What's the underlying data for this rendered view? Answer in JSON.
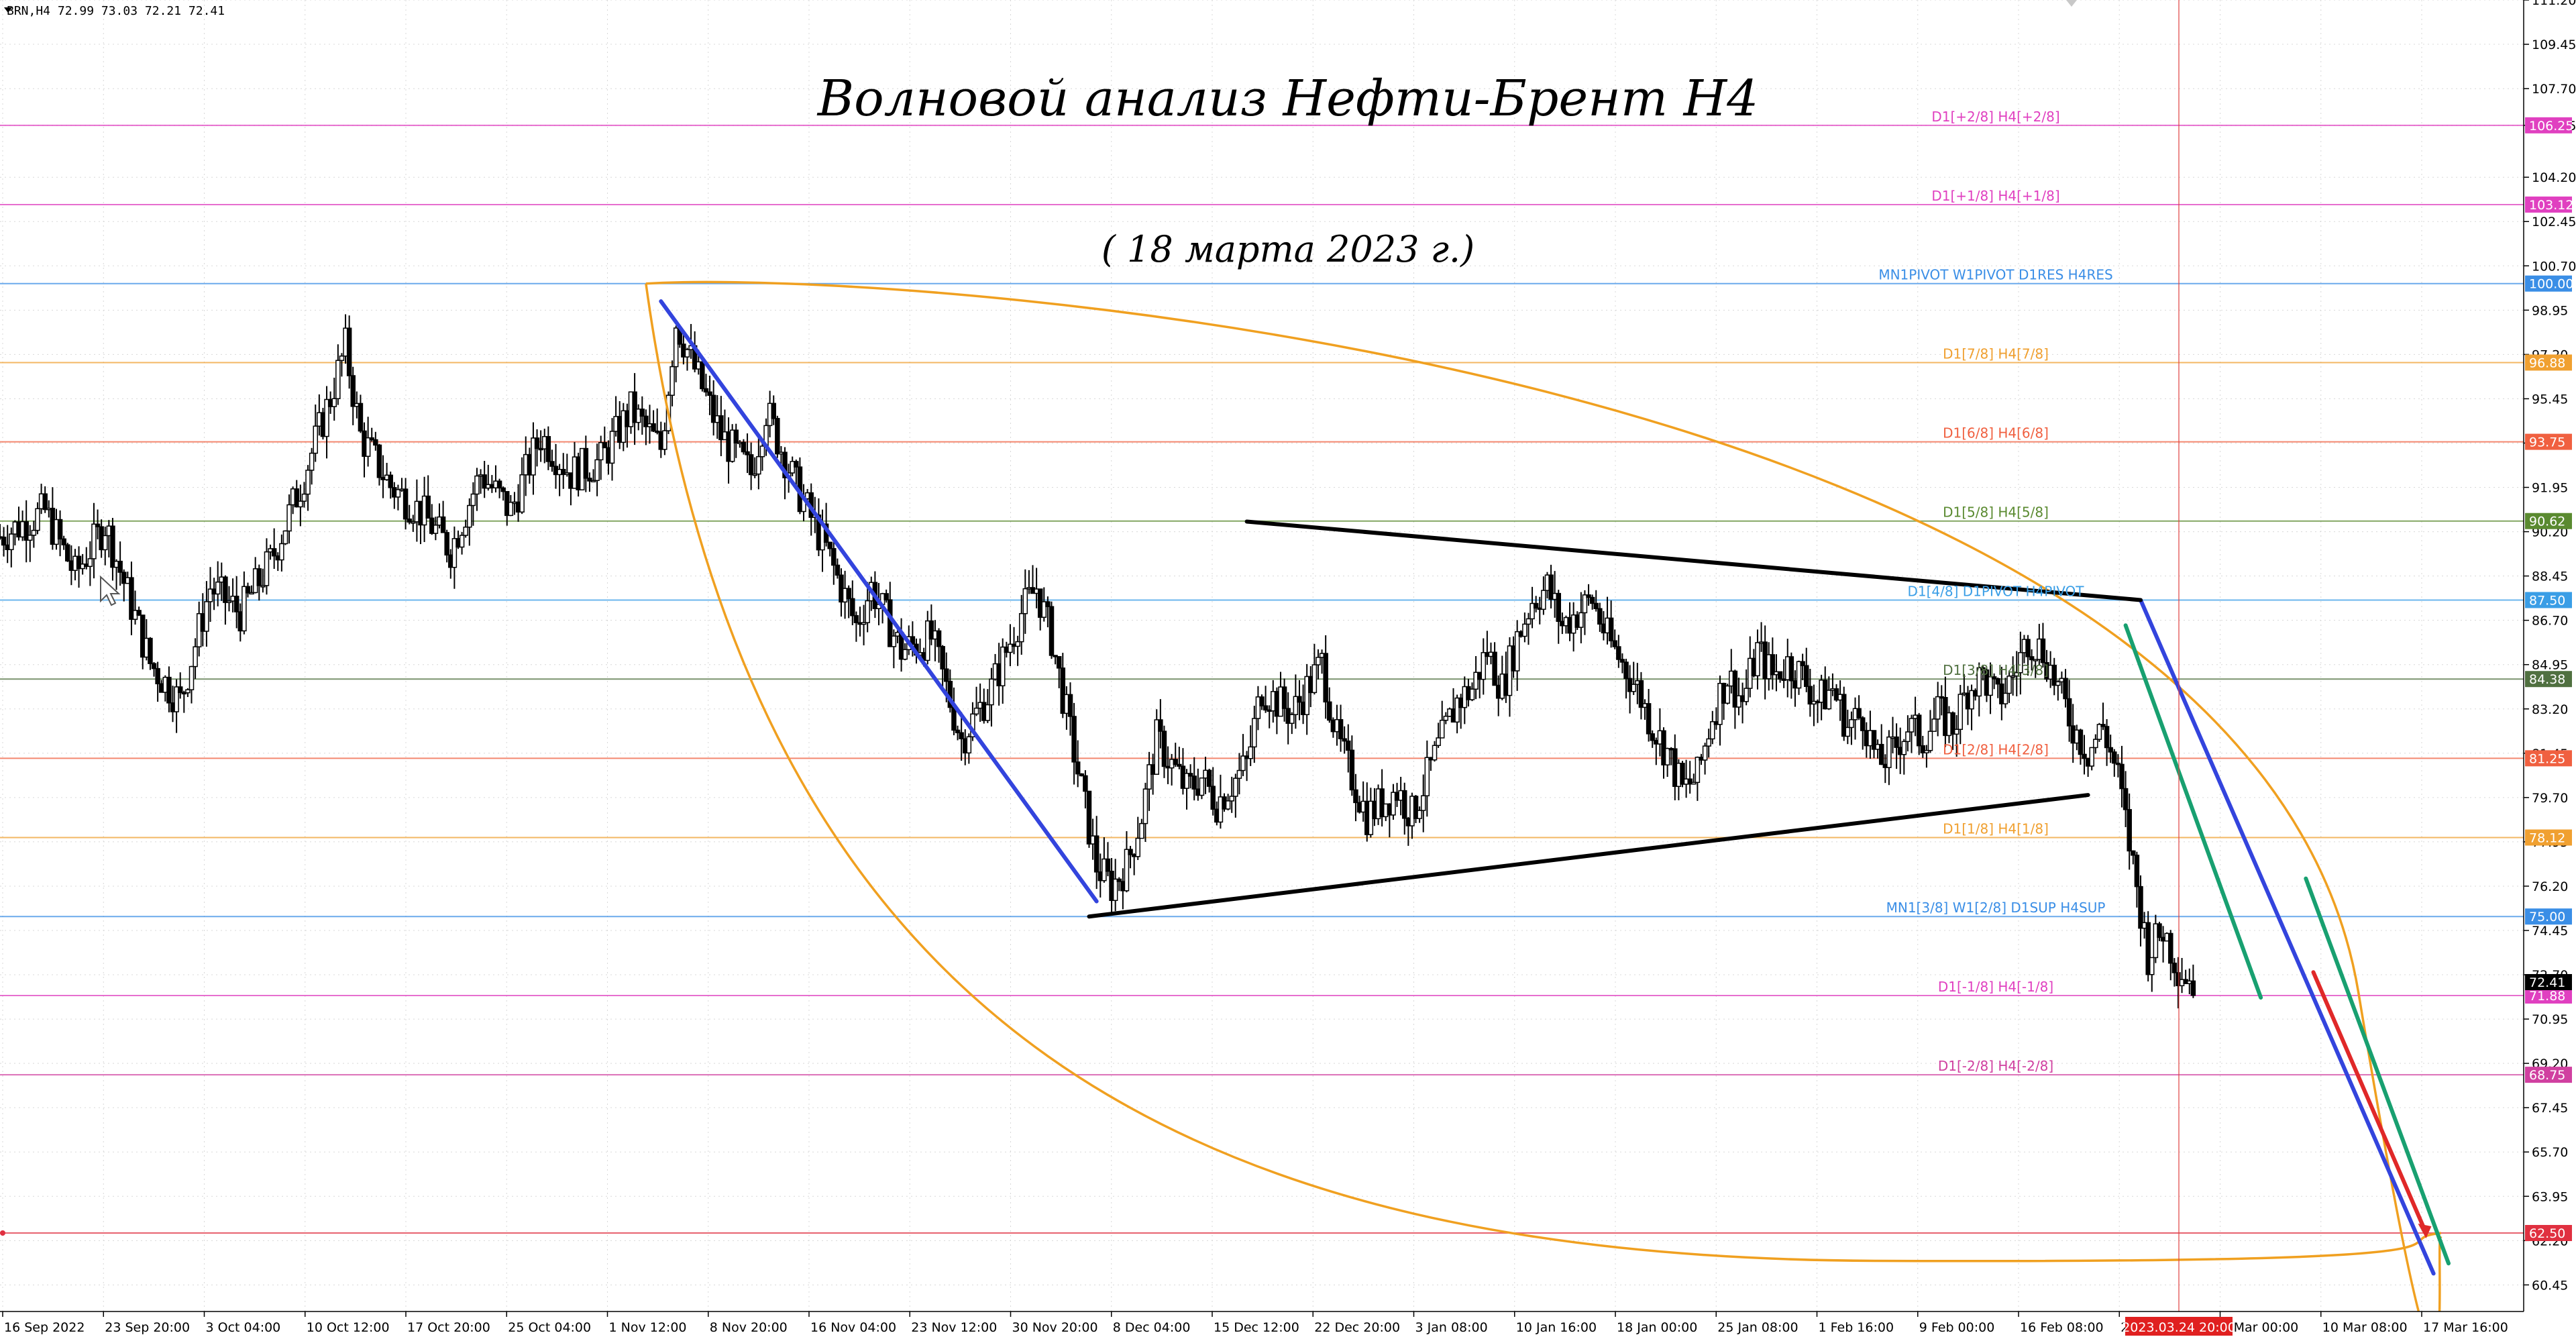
{
  "header": {
    "symbol_info": "BRN,H4  72.99 73.03 72.21 72.41",
    "title": "Волновой анализ Нефти-Брент H4",
    "subtitle": "( 18 марта 2023 г.)"
  },
  "chart_data": {
    "type": "candlestick",
    "symbol": "BRN",
    "timeframe": "H4",
    "ohlc_last": {
      "open": 72.99,
      "high": 73.03,
      "low": 72.21,
      "close": 72.41
    },
    "ylim": [
      59.4,
      111.2
    ],
    "y_ticks": [
      111.2,
      109.45,
      107.7,
      106.25,
      104.2,
      102.45,
      100.7,
      98.95,
      97.2,
      95.45,
      93.7,
      91.95,
      90.2,
      88.45,
      86.7,
      84.95,
      83.2,
      81.45,
      79.7,
      77.95,
      76.2,
      74.45,
      72.7,
      70.95,
      69.2,
      67.45,
      65.7,
      63.95,
      62.2,
      60.45
    ],
    "x_tick_labels": [
      "16 Sep 2022",
      "23 Sep 20:00",
      "3 Oct 04:00",
      "10 Oct 12:00",
      "17 Oct 20:00",
      "25 Oct 04:00",
      "1 Nov 12:00",
      "8 Nov 20:00",
      "16 Nov 04:00",
      "23 Nov 12:00",
      "30 Nov 20:00",
      "8 Dec 04:00",
      "15 Dec 12:00",
      "22 Dec 20:00",
      "3 Jan 08:00",
      "10 Jan 16:00",
      "18 Jan 00:00",
      "25 Jan 08:00",
      "1 Feb 16:00",
      "9 Feb 00:00",
      "16 Feb 08:00",
      "23 Feb 16:00",
      "3 Mar 00:00",
      "10 Mar 08:00",
      "17 Mar 16:00"
    ],
    "current_time_label": "2023.03.24 20:00",
    "current_price": {
      "value": 72.41,
      "label": "72.41"
    },
    "levels": [
      {
        "price": 106.25,
        "label": "D1[+2/8] H4[+2/8]",
        "tag": "106.25",
        "color": "#e040c0"
      },
      {
        "price": 103.12,
        "label": "D1[+1/8] H4[+1/8]",
        "tag": "103.12",
        "color": "#e040c0"
      },
      {
        "price": 100.0,
        "label": "MN1PIVOT W1PIVOT D1RES H4RES",
        "tag": "100.00",
        "color": "#3a8ee6"
      },
      {
        "price": 96.88,
        "label": "D1[7/8] H4[7/8]",
        "tag": "96.88",
        "color": "#f0a030"
      },
      {
        "price": 93.75,
        "label": "D1[6/8] H4[6/8]",
        "tag": "93.75",
        "color": "#f06040"
      },
      {
        "price": 90.62,
        "label": "D1[5/8] H4[5/8]",
        "tag": "90.62",
        "color": "#5a8a30"
      },
      {
        "price": 87.5,
        "label": "D1[4/8] D1PIVOT H4PIVOT",
        "tag": "87.50",
        "color": "#3a9ee6"
      },
      {
        "price": 84.38,
        "label": "D1[3/8] H4[3/8]",
        "tag": "84.38",
        "color": "#507040"
      },
      {
        "price": 81.25,
        "label": "D1[2/8] H4[2/8]",
        "tag": "81.25",
        "color": "#f06040"
      },
      {
        "price": 78.12,
        "label": "D1[1/8] H4[1/8]",
        "tag": "78.12",
        "color": "#f0a030"
      },
      {
        "price": 75.0,
        "label": "MN1[3/8] W1[2/8] D1SUP H4SUP",
        "tag": "75.00",
        "color": "#3a8ee6"
      },
      {
        "price": 71.88,
        "label": "D1[-1/8] H4[-1/8]",
        "tag": "71.88",
        "color": "#e040c0"
      },
      {
        "price": 68.75,
        "label": "D1[-2/8] H4[-2/8]",
        "tag": "68.75",
        "color": "#d040a0"
      },
      {
        "price": 62.5,
        "label": "",
        "tag": "62.50",
        "color": "#e03040"
      }
    ],
    "price_path": [
      {
        "t": 0,
        "p": 90.0
      },
      {
        "t": 3,
        "p": 91.0
      },
      {
        "t": 5,
        "p": 88.5
      },
      {
        "t": 7,
        "p": 90.5
      },
      {
        "t": 10,
        "p": 85.0
      },
      {
        "t": 12,
        "p": 83.5
      },
      {
        "t": 14,
        "p": 88.0
      },
      {
        "t": 16,
        "p": 87.0
      },
      {
        "t": 18,
        "p": 89.0
      },
      {
        "t": 20,
        "p": 92.0
      },
      {
        "t": 22,
        "p": 95.5
      },
      {
        "t": 23,
        "p": 97.5
      },
      {
        "t": 24,
        "p": 94.0
      },
      {
        "t": 26,
        "p": 92.0
      },
      {
        "t": 28,
        "p": 91.0
      },
      {
        "t": 30,
        "p": 89.5
      },
      {
        "t": 32,
        "p": 92.5
      },
      {
        "t": 34,
        "p": 91.0
      },
      {
        "t": 36,
        "p": 94.0
      },
      {
        "t": 38,
        "p": 92.5
      },
      {
        "t": 40,
        "p": 93.0
      },
      {
        "t": 42,
        "p": 95.0
      },
      {
        "t": 44,
        "p": 93.5
      },
      {
        "t": 45,
        "p": 98.5
      },
      {
        "t": 46,
        "p": 97.0
      },
      {
        "t": 48,
        "p": 94.0
      },
      {
        "t": 50,
        "p": 92.5
      },
      {
        "t": 51,
        "p": 95.0
      },
      {
        "t": 53,
        "p": 92.0
      },
      {
        "t": 55,
        "p": 89.5
      },
      {
        "t": 57,
        "p": 86.5
      },
      {
        "t": 58,
        "p": 88.0
      },
      {
        "t": 60,
        "p": 85.5
      },
      {
        "t": 62,
        "p": 86.0
      },
      {
        "t": 64,
        "p": 82.0
      },
      {
        "t": 66,
        "p": 84.0
      },
      {
        "t": 68,
        "p": 87.0
      },
      {
        "t": 69,
        "p": 88.0
      },
      {
        "t": 70,
        "p": 86.0
      },
      {
        "t": 71,
        "p": 83.0
      },
      {
        "t": 72,
        "p": 80.0
      },
      {
        "t": 73,
        "p": 77.0
      },
      {
        "t": 74,
        "p": 76.2
      },
      {
        "t": 75,
        "p": 77.0
      },
      {
        "t": 76,
        "p": 79.0
      },
      {
        "t": 77,
        "p": 82.0
      },
      {
        "t": 78,
        "p": 81.0
      },
      {
        "t": 79,
        "p": 80.0
      },
      {
        "t": 80,
        "p": 80.5
      },
      {
        "t": 81,
        "p": 79.5
      },
      {
        "t": 83,
        "p": 81.0
      },
      {
        "t": 84,
        "p": 84.0
      },
      {
        "t": 86,
        "p": 83.0
      },
      {
        "t": 88,
        "p": 85.0
      },
      {
        "t": 89,
        "p": 82.0
      },
      {
        "t": 91,
        "p": 79.0
      },
      {
        "t": 92,
        "p": 79.5
      },
      {
        "t": 93,
        "p": 80.0
      },
      {
        "t": 94,
        "p": 79.0
      },
      {
        "t": 95,
        "p": 80.5
      },
      {
        "t": 96,
        "p": 82.0
      },
      {
        "t": 97,
        "p": 83.5
      },
      {
        "t": 98,
        "p": 84.0
      },
      {
        "t": 99,
        "p": 85.5
      },
      {
        "t": 100,
        "p": 84.0
      },
      {
        "t": 101,
        "p": 86.0
      },
      {
        "t": 102,
        "p": 87.5
      },
      {
        "t": 103,
        "p": 88.0
      },
      {
        "t": 104,
        "p": 86.5
      },
      {
        "t": 105,
        "p": 87.0
      },
      {
        "t": 106,
        "p": 87.5
      },
      {
        "t": 107,
        "p": 86.0
      },
      {
        "t": 108,
        "p": 85.0
      },
      {
        "t": 109,
        "p": 84.0
      },
      {
        "t": 110,
        "p": 82.5
      },
      {
        "t": 111,
        "p": 81.5
      },
      {
        "t": 112,
        "p": 80.0
      },
      {
        "t": 113,
        "p": 80.5
      },
      {
        "t": 114,
        "p": 83.0
      },
      {
        "t": 115,
        "p": 84.5
      },
      {
        "t": 116,
        "p": 83.5
      },
      {
        "t": 117,
        "p": 85.5
      },
      {
        "t": 118,
        "p": 84.5
      },
      {
        "t": 119,
        "p": 85.0
      },
      {
        "t": 120,
        "p": 84.5
      },
      {
        "t": 121,
        "p": 83.5
      },
      {
        "t": 122,
        "p": 84.0
      },
      {
        "t": 123,
        "p": 82.5
      },
      {
        "t": 124,
        "p": 83.0
      },
      {
        "t": 125,
        "p": 81.0
      },
      {
        "t": 126,
        "p": 81.5
      },
      {
        "t": 127,
        "p": 82.5
      },
      {
        "t": 128,
        "p": 82.0
      },
      {
        "t": 129,
        "p": 83.0
      },
      {
        "t": 130,
        "p": 82.5
      },
      {
        "t": 131,
        "p": 84.0
      },
      {
        "t": 132,
        "p": 84.5
      },
      {
        "t": 133,
        "p": 83.5
      },
      {
        "t": 134,
        "p": 84.5
      },
      {
        "t": 135,
        "p": 86.0
      },
      {
        "t": 136,
        "p": 85.5
      },
      {
        "t": 137,
        "p": 84.0
      },
      {
        "t": 138,
        "p": 82.5
      },
      {
        "t": 139,
        "p": 81.5
      },
      {
        "t": 140,
        "p": 82.5
      },
      {
        "t": 141,
        "p": 80.5
      },
      {
        "t": 142,
        "p": 77.0
      },
      {
        "t": 143,
        "p": 73.5
      },
      {
        "t": 144,
        "p": 74.5
      },
      {
        "t": 145,
        "p": 73.0
      },
      {
        "t": 146,
        "p": 72.41
      }
    ],
    "drawings": [
      {
        "kind": "trendline",
        "color": "#3344dd",
        "from": {
          "t": 44,
          "p": 99.3
        },
        "to": {
          "t": 73,
          "p": 75.6
        }
      },
      {
        "kind": "trendline",
        "color": "#3344dd",
        "from": {
          "t": 142.5,
          "p": 87.5
        },
        "to": {
          "t": 162,
          "p": 60.9
        }
      },
      {
        "kind": "trendline",
        "color": "#000000",
        "from": {
          "t": 83,
          "p": 90.6
        },
        "to": {
          "t": 142.5,
          "p": 87.5
        }
      },
      {
        "kind": "trendline",
        "color": "#000000",
        "from": {
          "t": 72.5,
          "p": 75.0
        },
        "to": {
          "t": 139,
          "p": 79.8
        }
      },
      {
        "kind": "trendline",
        "color": "#18a070",
        "from": {
          "t": 141.5,
          "p": 86.5
        },
        "to": {
          "t": 150.5,
          "p": 71.8
        }
      },
      {
        "kind": "trendline",
        "color": "#18a070",
        "from": {
          "t": 153.5,
          "p": 76.5
        },
        "to": {
          "t": 163,
          "p": 61.3
        }
      },
      {
        "kind": "trendline",
        "color": "#e02828",
        "from": {
          "t": 154,
          "p": 72.8
        },
        "to": {
          "t": 161.5,
          "p": 62.5
        }
      },
      {
        "kind": "arc",
        "color": "#f0a020"
      },
      {
        "kind": "arc",
        "color": "#f0a020"
      }
    ]
  }
}
